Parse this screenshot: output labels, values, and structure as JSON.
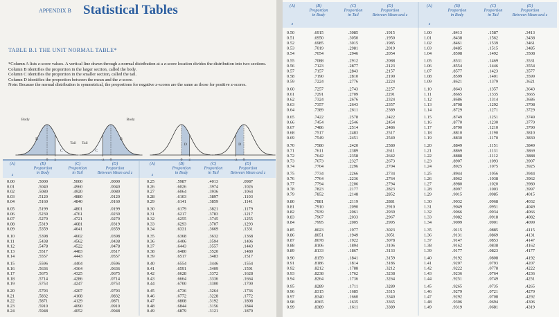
{
  "left_page": {
    "appendix": "APPENDIX B",
    "title": "Statistical Tables",
    "table_title": "TABLE B.1  THE UNIT NORMAL TABLE*",
    "notes": [
      "*Column A lists z-score values. A vertical line drawn through a normal distribution at a z-score location divides the distribution into two sections.",
      "Column B identifies the proportion in the larger section, called the body.",
      "Column C identifies the proportion in the smaller section, called the tail.",
      "Column D identifies the proportion between the mean and the z-score.",
      "Note: Because the normal distribution is symmetrical, the proportions for negative z-scores are the same as those for positive z-scores."
    ],
    "figures": [
      {
        "body": "Body",
        "b": "B",
        "tail": "Tail",
        "c": "C",
        "zero": "0",
        "z": "z"
      },
      {
        "body": "Body",
        "b": "B",
        "tail": "Tail",
        "c": "C",
        "zero": "0",
        "z": "-z"
      },
      {
        "d": "D",
        "zero": "0",
        "z": "z"
      },
      {
        "d": "D",
        "zero": "0",
        "z": "-z"
      }
    ],
    "tables": [
      {
        "rows": [
          [
            "0.00",
            ".5000",
            ".5000",
            ".0000"
          ],
          [
            "0.01",
            ".5040",
            ".4960",
            ".0040"
          ],
          [
            "0.02",
            ".5080",
            ".4920",
            ".0080"
          ],
          [
            "0.03",
            ".5120",
            ".4880",
            ".0120"
          ],
          [
            "0.04",
            ".5160",
            ".4840",
            ".0160"
          ],
          [
            "0.05",
            ".5199",
            ".4801",
            ".0199"
          ],
          [
            "0.06",
            ".5239",
            ".4761",
            ".0239"
          ],
          [
            "0.07",
            ".5279",
            ".4721",
            ".0279"
          ],
          [
            "0.08",
            ".5319",
            ".4681",
            ".0319"
          ],
          [
            "0.09",
            ".5359",
            ".4641",
            ".0359"
          ],
          [
            "0.10",
            ".5398",
            ".4602",
            ".0398"
          ],
          [
            "0.11",
            ".5438",
            ".4562",
            ".0438"
          ],
          [
            "0.12",
            ".5478",
            ".4522",
            ".0478"
          ],
          [
            "0.13",
            ".5517",
            ".4483",
            ".0517"
          ],
          [
            "0.14",
            ".5557",
            ".4443",
            ".0557"
          ],
          [
            "0.15",
            ".5596",
            ".4404",
            ".0596"
          ],
          [
            "0.16",
            ".5636",
            ".4364",
            ".0636"
          ],
          [
            "0.17",
            ".5675",
            ".4325",
            ".0675"
          ],
          [
            "0.18",
            ".5714",
            ".4286",
            ".0714"
          ],
          [
            "0.19",
            ".5753",
            ".4247",
            ".0753"
          ],
          [
            "0.20",
            ".5793",
            ".4207",
            ".0793"
          ],
          [
            "0.21",
            ".5832",
            ".4168",
            ".0832"
          ],
          [
            "0.22",
            ".5871",
            ".4129",
            ".0871"
          ],
          [
            "0.23",
            ".5910",
            ".4090",
            ".0910"
          ],
          [
            "0.24",
            ".5948",
            ".4052",
            ".0948"
          ]
        ]
      },
      {
        "rows": [
          [
            "0.25",
            ".5987",
            ".4013",
            ".0987"
          ],
          [
            "0.26",
            ".6026",
            ".3974",
            ".1026"
          ],
          [
            "0.27",
            ".6064",
            ".3936",
            ".1064"
          ],
          [
            "0.28",
            ".6103",
            ".3897",
            ".1103"
          ],
          [
            "0.29",
            ".6141",
            ".3859",
            ".1141"
          ],
          [
            "0.30",
            ".6179",
            ".3821",
            ".1179"
          ],
          [
            "0.31",
            ".6217",
            ".3783",
            ".1217"
          ],
          [
            "0.32",
            ".6255",
            ".3745",
            ".1255"
          ],
          [
            "0.33",
            ".6293",
            ".3707",
            ".1293"
          ],
          [
            "0.34",
            ".6331",
            ".3669",
            ".1331"
          ],
          [
            "0.35",
            ".6368",
            ".3632",
            ".1368"
          ],
          [
            "0.36",
            ".6406",
            ".3594",
            ".1406"
          ],
          [
            "0.37",
            ".6443",
            ".3557",
            ".1443"
          ],
          [
            "0.38",
            ".6480",
            ".3520",
            ".1480"
          ],
          [
            "0.39",
            ".6517",
            ".3483",
            ".1517"
          ],
          [
            "0.40",
            ".6554",
            ".3446",
            ".1554"
          ],
          [
            "0.41",
            ".6591",
            ".3409",
            ".1591"
          ],
          [
            "0.42",
            ".6628",
            ".3372",
            ".1628"
          ],
          [
            "0.43",
            ".6664",
            ".3336",
            ".1664"
          ],
          [
            "0.44",
            ".6700",
            ".3300",
            ".1700"
          ],
          [
            "0.45",
            ".6736",
            ".3264",
            ".1736"
          ],
          [
            "0.46",
            ".6772",
            ".3228",
            ".1772"
          ],
          [
            "0.47",
            ".6808",
            ".3192",
            ".1808"
          ],
          [
            "0.48",
            ".6844",
            ".3156",
            ".1844"
          ],
          [
            "0.49",
            ".6879",
            ".3121",
            ".1879"
          ]
        ]
      }
    ]
  },
  "right_page": {
    "tables": [
      {
        "rows": [
          [
            "0.50",
            ".6915",
            ".3085",
            ".1915"
          ],
          [
            "0.51",
            ".6950",
            ".3050",
            ".1950"
          ],
          [
            "0.52",
            ".6985",
            ".3015",
            ".1985"
          ],
          [
            "0.53",
            ".7019",
            ".2981",
            ".2019"
          ],
          [
            "0.54",
            ".7054",
            ".2946",
            ".2054"
          ],
          [
            "0.55",
            ".7088",
            ".2912",
            ".2088"
          ],
          [
            "0.56",
            ".7123",
            ".2877",
            ".2123"
          ],
          [
            "0.57",
            ".7157",
            ".2843",
            ".2157"
          ],
          [
            "0.58",
            ".7190",
            ".2810",
            ".2190"
          ],
          [
            "0.59",
            ".7224",
            ".2776",
            ".2224"
          ],
          [
            "0.60",
            ".7257",
            ".2743",
            ".2257"
          ],
          [
            "0.61",
            ".7291",
            ".2709",
            ".2291"
          ],
          [
            "0.62",
            ".7324",
            ".2676",
            ".2324"
          ],
          [
            "0.63",
            ".7357",
            ".2643",
            ".2357"
          ],
          [
            "0.64",
            ".7389",
            ".2611",
            ".2389"
          ],
          [
            "0.65",
            ".7422",
            ".2578",
            ".2422"
          ],
          [
            "0.66",
            ".7454",
            ".2546",
            ".2454"
          ],
          [
            "0.67",
            ".7486",
            ".2514",
            ".2486"
          ],
          [
            "0.68",
            ".7517",
            ".2483",
            ".2517"
          ],
          [
            "0.69",
            ".7549",
            ".2451",
            ".2549"
          ],
          [
            "0.70",
            ".7580",
            ".2420",
            ".2580"
          ],
          [
            "0.71",
            ".7611",
            ".2389",
            ".2611"
          ],
          [
            "0.72",
            ".7642",
            ".2358",
            ".2642"
          ],
          [
            "0.73",
            ".7673",
            ".2327",
            ".2673"
          ],
          [
            "0.74",
            ".7704",
            ".2296",
            ".2704"
          ],
          [
            "0.75",
            ".7734",
            ".2266",
            ".2734"
          ],
          [
            "0.76",
            ".7764",
            ".2236",
            ".2764"
          ],
          [
            "0.77",
            ".7794",
            ".2206",
            ".2794"
          ],
          [
            "0.78",
            ".7823",
            ".2177",
            ".2823"
          ],
          [
            "0.79",
            ".7852",
            ".2148",
            ".2852"
          ],
          [
            "0.80",
            ".7881",
            ".2119",
            ".2881"
          ],
          [
            "0.81",
            ".7910",
            ".2090",
            ".2910"
          ],
          [
            "0.82",
            ".7939",
            ".2061",
            ".2939"
          ],
          [
            "0.83",
            ".7967",
            ".2033",
            ".2967"
          ],
          [
            "0.84",
            ".7995",
            ".2005",
            ".2995"
          ],
          [
            "0.85",
            ".8023",
            ".1977",
            ".3023"
          ],
          [
            "0.86",
            ".8051",
            ".1949",
            ".3051"
          ],
          [
            "0.87",
            ".8078",
            ".1922",
            ".3078"
          ],
          [
            "0.88",
            ".8106",
            ".1894",
            ".3106"
          ],
          [
            "0.89",
            ".8133",
            ".1867",
            ".3133"
          ],
          [
            "0.90",
            ".8159",
            ".1841",
            ".3159"
          ],
          [
            "0.91",
            ".8186",
            ".1814",
            ".3186"
          ],
          [
            "0.92",
            ".8212",
            ".1788",
            ".3212"
          ],
          [
            "0.93",
            ".8238",
            ".1762",
            ".3238"
          ],
          [
            "0.94",
            ".8264",
            ".1736",
            ".3264"
          ],
          [
            "0.95",
            ".8289",
            ".1711",
            ".3289"
          ],
          [
            "0.96",
            ".8315",
            ".1685",
            ".3315"
          ],
          [
            "0.97",
            ".8340",
            ".1660",
            ".3340"
          ],
          [
            "0.98",
            ".8365",
            ".1635",
            ".3365"
          ],
          [
            "0.99",
            ".8389",
            ".1611",
            ".3389"
          ]
        ]
      },
      {
        "rows": [
          [
            "1.00",
            ".8413",
            ".1587",
            ".3413"
          ],
          [
            "1.01",
            ".8438",
            ".1562",
            ".3438"
          ],
          [
            "1.02",
            ".8461",
            ".1539",
            ".3461"
          ],
          [
            "1.03",
            ".8485",
            ".1515",
            ".3485"
          ],
          [
            "1.04",
            ".8508",
            ".1492",
            ".3508"
          ],
          [
            "1.05",
            ".8531",
            ".1469",
            ".3531"
          ],
          [
            "1.06",
            ".8554",
            ".1446",
            ".3554"
          ],
          [
            "1.07",
            ".8577",
            ".1423",
            ".3577"
          ],
          [
            "1.08",
            ".8599",
            ".1401",
            ".3599"
          ],
          [
            "1.09",
            ".8621",
            ".1379",
            ".3621"
          ],
          [
            "1.10",
            ".8643",
            ".1357",
            ".3643"
          ],
          [
            "1.11",
            ".8665",
            ".1335",
            ".3665"
          ],
          [
            "1.12",
            ".8686",
            ".1314",
            ".3686"
          ],
          [
            "1.13",
            ".8708",
            ".1292",
            ".3708"
          ],
          [
            "1.14",
            ".8729",
            ".1271",
            ".3729"
          ],
          [
            "1.15",
            ".8749",
            ".1251",
            ".3749"
          ],
          [
            "1.16",
            ".8770",
            ".1230",
            ".3770"
          ],
          [
            "1.17",
            ".8790",
            ".1210",
            ".3790"
          ],
          [
            "1.18",
            ".8810",
            ".1190",
            ".3810"
          ],
          [
            "1.19",
            ".8830",
            ".1170",
            ".3830"
          ],
          [
            "1.20",
            ".8849",
            ".1151",
            ".3849"
          ],
          [
            "1.21",
            ".8869",
            ".1131",
            ".3869"
          ],
          [
            "1.22",
            ".8888",
            ".1112",
            ".3888"
          ],
          [
            "1.23",
            ".8907",
            ".1093",
            ".3907"
          ],
          [
            "1.24",
            ".8925",
            ".1075",
            ".3925"
          ],
          [
            "1.25",
            ".8944",
            ".1056",
            ".3944"
          ],
          [
            "1.26",
            ".8962",
            ".1038",
            ".3962"
          ],
          [
            "1.27",
            ".8980",
            ".1020",
            ".3980"
          ],
          [
            "1.28",
            ".8997",
            ".1003",
            ".3997"
          ],
          [
            "1.29",
            ".9015",
            ".0985",
            ".4015"
          ],
          [
            "1.30",
            ".9032",
            ".0968",
            ".4032"
          ],
          [
            "1.31",
            ".9049",
            ".0951",
            ".4049"
          ],
          [
            "1.32",
            ".9066",
            ".0934",
            ".4066"
          ],
          [
            "1.33",
            ".9082",
            ".0918",
            ".4082"
          ],
          [
            "1.34",
            ".9099",
            ".0901",
            ".4099"
          ],
          [
            "1.35",
            ".9115",
            ".0885",
            ".4115"
          ],
          [
            "1.36",
            ".9131",
            ".0869",
            ".4131"
          ],
          [
            "1.37",
            ".9147",
            ".0853",
            ".4147"
          ],
          [
            "1.38",
            ".9162",
            ".0838",
            ".4162"
          ],
          [
            "1.39",
            ".9177",
            ".0823",
            ".4177"
          ],
          [
            "1.40",
            ".9192",
            ".0808",
            ".4192"
          ],
          [
            "1.41",
            ".9207",
            ".0793",
            ".4207"
          ],
          [
            "1.42",
            ".9222",
            ".0778",
            ".4222"
          ],
          [
            "1.43",
            ".9236",
            ".0764",
            ".4236"
          ],
          [
            "1.44",
            ".9251",
            ".0749",
            ".4251"
          ],
          [
            "1.45",
            ".9265",
            ".0735",
            ".4265"
          ],
          [
            "1.46",
            ".9279",
            ".0721",
            ".4279"
          ],
          [
            "1.47",
            ".9292",
            ".0708",
            ".4292"
          ],
          [
            "1.48",
            ".9306",
            ".0694",
            ".4306"
          ],
          [
            "1.49",
            ".9319",
            ".0681",
            ".4319"
          ]
        ]
      }
    ]
  },
  "column_headers": [
    {
      "letter": "(A)",
      "lines": [
        "z"
      ]
    },
    {
      "letter": "(B)",
      "lines": [
        "Proportion",
        "in Body"
      ]
    },
    {
      "letter": "(C)",
      "lines": [
        "Proportion",
        "in Tail"
      ]
    },
    {
      "letter": "(D)",
      "lines": [
        "Proportion",
        "Between Mean and z"
      ]
    }
  ]
}
